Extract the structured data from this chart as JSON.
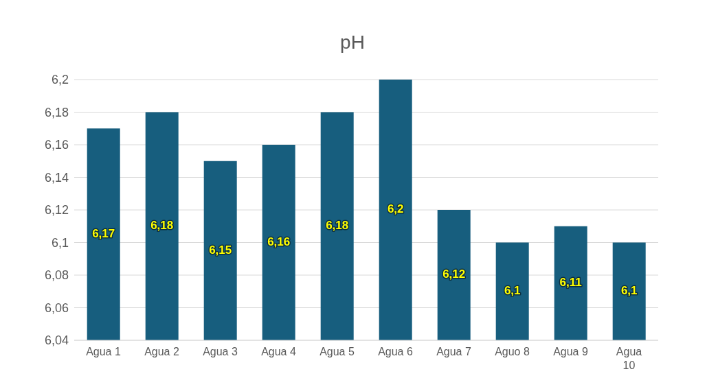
{
  "chart_data": {
    "type": "bar",
    "title": "pH",
    "categories": [
      "Agua 1",
      "Agua 2",
      "Agua 3",
      "Agua 4",
      "Agua 5",
      "Agua 6",
      "Agua 7",
      "Aguo 8",
      "Agua 9",
      "Agua 10"
    ],
    "values": [
      6.17,
      6.18,
      6.15,
      6.16,
      6.18,
      6.2,
      6.12,
      6.1,
      6.11,
      6.1
    ],
    "value_labels": [
      "6,17",
      "6,18",
      "6,15",
      "6,16",
      "6,18",
      "6,2",
      "6,12",
      "6,1",
      "6,11",
      "6,1"
    ],
    "color": "#175e7e",
    "ylim": [
      6.04,
      6.2
    ],
    "yticks": [
      {
        "value": 6.04,
        "label": "6,04"
      },
      {
        "value": 6.06,
        "label": "6,06"
      },
      {
        "value": 6.08,
        "label": "6,08"
      },
      {
        "value": 6.1,
        "label": "6,1"
      },
      {
        "value": 6.12,
        "label": "6,12"
      },
      {
        "value": 6.14,
        "label": "6,14"
      },
      {
        "value": 6.16,
        "label": "6,16"
      },
      {
        "value": 6.18,
        "label": "6,18"
      },
      {
        "value": 6.2,
        "label": "6,2"
      }
    ],
    "grid": "y",
    "legend": false
  }
}
